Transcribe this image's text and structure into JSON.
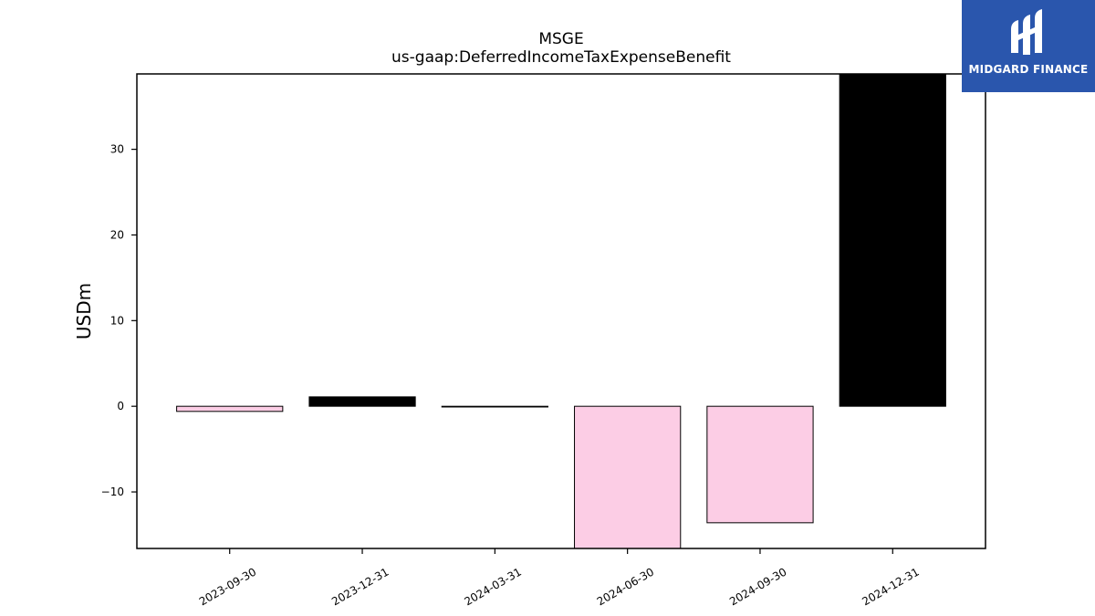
{
  "chart_data": {
    "type": "bar",
    "title": "MSGE",
    "subtitle": "us-gaap:DeferredIncomeTaxExpenseBenefit",
    "ylabel": "USDm",
    "categories": [
      "2023-09-30",
      "2023-12-31",
      "2024-03-31",
      "2024-06-30",
      "2024-09-30",
      "2024-12-31"
    ],
    "values": [
      -0.6,
      1.1,
      -0.05,
      -16.6,
      -13.6,
      38.8
    ],
    "ylim": [
      -16.6,
      38.8
    ],
    "yticks": [
      -10,
      0,
      10,
      20,
      30
    ],
    "ytick_labels": [
      "−10",
      "0",
      "10",
      "20",
      "30"
    ],
    "bar_colors": {
      "positive": "#000000",
      "negative": "#fccde5"
    },
    "grid": false,
    "legend": "none"
  },
  "logo": {
    "text": "MIDGARD FINANCE",
    "color": "#2a56ad"
  }
}
